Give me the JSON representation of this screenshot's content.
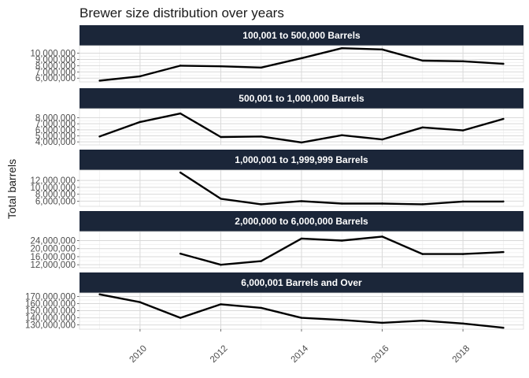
{
  "chart_data": {
    "type": "line",
    "title": "Brewer size distribution over years",
    "ylabel": "Total barrels",
    "xlabel": "",
    "x_ticks": [
      2010,
      2012,
      2014,
      2016,
      2018
    ],
    "xlim": [
      2008.5,
      2019.5
    ],
    "grid": true,
    "line_color": "#000000",
    "strip_color": "#1b2639",
    "panels": [
      {
        "name": "100,001 to 500,000 Barrels",
        "ylim": [
          5400000,
          11200000
        ],
        "y_ticks": [
          6000000,
          7000000,
          8000000,
          9000000,
          10000000
        ],
        "y_tick_labels": [
          "6,000,000",
          "7,000,000",
          "8,000,000",
          "9,000,000",
          "10,000,000"
        ],
        "x": [
          2009,
          2010,
          2011,
          2012,
          2013,
          2014,
          2015,
          2016,
          2017,
          2018,
          2019
        ],
        "values": [
          5600000,
          6300000,
          8000000,
          7900000,
          7700000,
          9200000,
          10800000,
          10600000,
          8800000,
          8700000,
          8300000
        ]
      },
      {
        "name": "500,001 to 1,000,000 Barrels",
        "ylim": [
          3500000,
          9500000
        ],
        "y_ticks": [
          4000000,
          5000000,
          6000000,
          7000000,
          8000000
        ],
        "y_tick_labels": [
          "4,000,000",
          "5,000,000",
          "6,000,000",
          "7,000,000",
          "8,000,000"
        ],
        "x": [
          2009,
          2010,
          2011,
          2012,
          2013,
          2014,
          2015,
          2016,
          2017,
          2018,
          2019
        ],
        "values": [
          4900000,
          7300000,
          8700000,
          4800000,
          4900000,
          3900000,
          5100000,
          4400000,
          6400000,
          5900000,
          7800000
        ]
      },
      {
        "name": "1,000,001 to 1,999,999 Barrels",
        "ylim": [
          4500000,
          15000000
        ],
        "y_ticks": [
          6000000,
          8000000,
          10000000,
          12000000
        ],
        "y_tick_labels": [
          "6,000,000",
          "8,000,000",
          "10,000,000",
          "12,000,000"
        ],
        "x": [
          2011,
          2012,
          2013,
          2014,
          2015,
          2016,
          2017,
          2018,
          2019
        ],
        "values": [
          14300000,
          6700000,
          5100000,
          6000000,
          5300000,
          5300000,
          5100000,
          5900000,
          5900000
        ]
      },
      {
        "name": "2,000,000 to 6,000,000 Barrels",
        "ylim": [
          10500000,
          28500000
        ],
        "y_ticks": [
          12000000,
          16000000,
          20000000,
          24000000
        ],
        "y_tick_labels": [
          "12,000,000",
          "16,000,000",
          "20,000,000",
          "24,000,000"
        ],
        "x": [
          2011,
          2012,
          2013,
          2014,
          2015,
          2016,
          2017,
          2018,
          2019
        ],
        "values": [
          17500000,
          12000000,
          13800000,
          25000000,
          24000000,
          26000000,
          17300000,
          17300000,
          18300000
        ]
      },
      {
        "name": "6,000,001 Barrels and Over",
        "ylim": [
          124000000,
          175000000
        ],
        "y_ticks": [
          130000000,
          140000000,
          150000000,
          160000000,
          170000000
        ],
        "y_tick_labels": [
          "130,000,000",
          "140,000,000",
          "150,000,000",
          "160,000,000",
          "170,000,000"
        ],
        "x": [
          2009,
          2010,
          2011,
          2012,
          2013,
          2014,
          2015,
          2016,
          2017,
          2018,
          2019
        ],
        "values": [
          173000000,
          162000000,
          140000000,
          159000000,
          154000000,
          140000000,
          137000000,
          133000000,
          136000000,
          132000000,
          126000000
        ]
      }
    ]
  }
}
